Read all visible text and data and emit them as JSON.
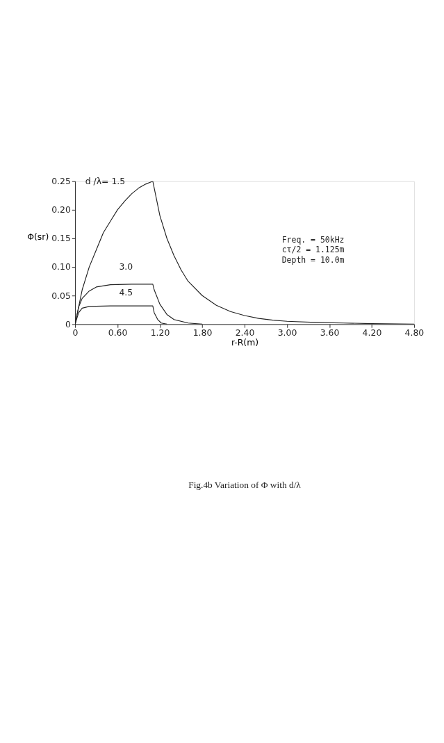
{
  "chart_data": {
    "type": "line",
    "title": "Fig.4b Variation of Φ with d/λ",
    "xlabel": "r-R(m)",
    "ylabel": "Φ(sr)",
    "xlim": [
      0,
      4.8
    ],
    "ylim": [
      0,
      0.25
    ],
    "xticks": [
      0,
      {
        "value": 0.6,
        "label": "0.60"
      },
      {
        "value": 1.2,
        "label": "1.20"
      },
      {
        "value": 1.8,
        "label": "1.80"
      },
      {
        "value": 2.4,
        "label": "2.40"
      },
      {
        "value": 3.0,
        "label": "3.00"
      },
      {
        "value": 3.6,
        "label": "3.60"
      },
      {
        "value": 4.2,
        "label": "4.20"
      },
      {
        "value": 4.8,
        "label": "4.80"
      }
    ],
    "yticks": [
      0,
      0.05,
      {
        "value": 0.1,
        "label": "0.10"
      },
      0.15,
      {
        "value": 0.2,
        "label": "0.20"
      },
      0.25
    ],
    "grid": false,
    "marker": "none",
    "line_style": "solid",
    "series": [
      {
        "color": "#222222",
        "x": [
          0,
          0.1,
          0.2,
          0.3,
          0.4,
          0.5,
          0.6,
          0.7,
          0.8,
          0.9,
          1.0,
          1.1,
          1.2,
          1.3,
          1.4,
          1.5,
          1.6,
          1.8,
          2.0,
          2.2,
          2.4,
          2.6,
          2.8,
          3.0,
          3.4,
          3.8,
          4.2,
          4.8
        ],
        "values": [
          0,
          0.06,
          0.1,
          0.13,
          0.16,
          0.18,
          0.2,
          0.215,
          0.228,
          0.238,
          0.245,
          0.25,
          0.19,
          0.15,
          0.12,
          0.095,
          0.075,
          0.05,
          0.033,
          0.022,
          0.015,
          0.01,
          0.007,
          0.005,
          0.003,
          0.002,
          0.001,
          0
        ]
      },
      {
        "color": "#222222",
        "x": [
          0,
          0.05,
          0.1,
          0.2,
          0.3,
          0.5,
          0.8,
          1.1,
          1.12,
          1.2,
          1.3,
          1.4,
          1.6,
          1.8
        ],
        "values": [
          0,
          0.03,
          0.045,
          0.058,
          0.065,
          0.069,
          0.07,
          0.07,
          0.06,
          0.035,
          0.017,
          0.008,
          0.002,
          0
        ]
      },
      {
        "color": "#222222",
        "x": [
          0,
          0.05,
          0.1,
          0.2,
          0.5,
          1.1,
          1.12,
          1.17,
          1.22,
          1.3
        ],
        "values": [
          0,
          0.02,
          0.028,
          0.031,
          0.032,
          0.032,
          0.02,
          0.008,
          0.002,
          0
        ]
      }
    ],
    "annotations": [
      "d /λ= 1.5",
      "3.0",
      "4.5",
      "Freq.   =  50kHz",
      "cτ/2   =  1.125m",
      "Depth  = 10.0m"
    ]
  }
}
